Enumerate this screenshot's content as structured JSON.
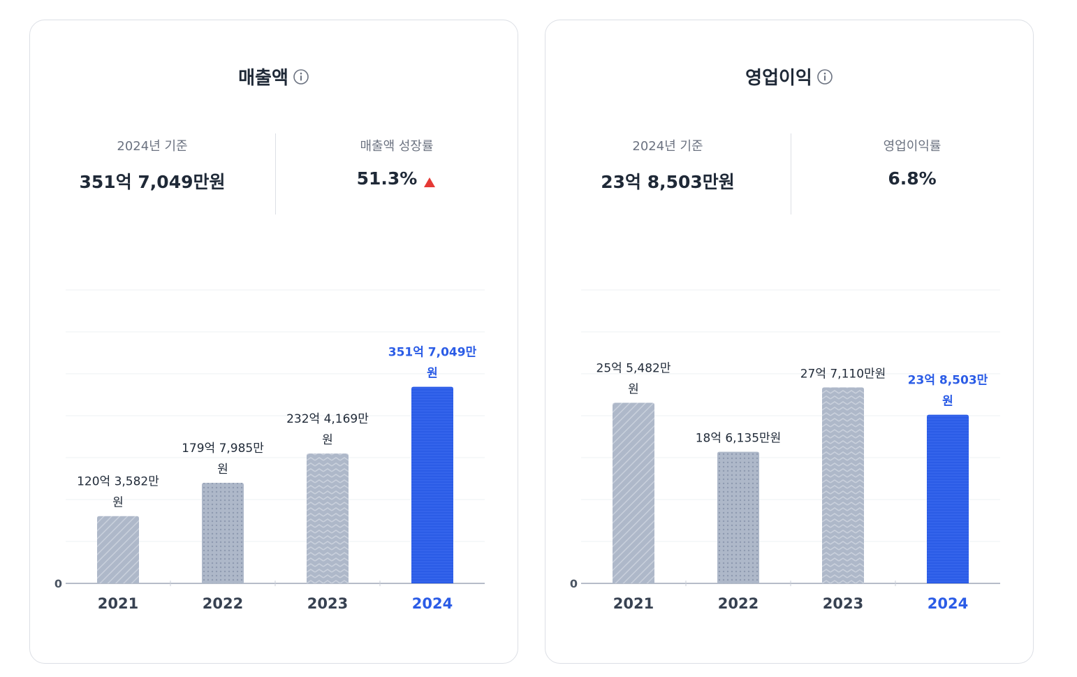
{
  "colors": {
    "highlight": "#2b5ce6",
    "bar_gray": "#aeb8c9",
    "axis": "#8a94a6",
    "grid": "#eef0f3",
    "up_arrow": "#e53935"
  },
  "cards": [
    {
      "title": "매출액",
      "title_icon": "info-circle-icon",
      "stat_left": {
        "label": "2024년 기준",
        "value": "351억 7,049만원"
      },
      "stat_right": {
        "label": "매출액 성장률",
        "value": "51.3%",
        "trend_icon": "triangle-up-icon"
      }
    },
    {
      "title": "영업이익",
      "title_icon": "info-circle-icon",
      "stat_left": {
        "label": "2024년 기준",
        "value": "23억 8,503만원"
      },
      "stat_right": {
        "label": "영업이익률",
        "value": "6.8%"
      }
    }
  ],
  "chart_data": [
    {
      "type": "bar",
      "title": "매출액",
      "categories": [
        "2021",
        "2022",
        "2023",
        "2024"
      ],
      "values": [
        120.3582,
        179.7985,
        232.4169,
        351.7049
      ],
      "unit": "억원",
      "data_labels": [
        [
          "120억 3,582만",
          "원"
        ],
        [
          "179억 7,985만",
          "원"
        ],
        [
          "232억 4,169만",
          "원"
        ],
        [
          "351억 7,049만",
          "원"
        ]
      ],
      "y_tick_labels": [
        "0"
      ],
      "highlight_index": 3,
      "patterns": [
        "diagonal",
        "dots",
        "zigzag",
        "solid-lines"
      ],
      "ylim": [
        0,
        525
      ],
      "grid": true
    },
    {
      "type": "bar",
      "title": "영업이익",
      "categories": [
        "2021",
        "2022",
        "2023",
        "2024"
      ],
      "values": [
        25.5482,
        18.6135,
        27.711,
        23.8503
      ],
      "unit": "억원",
      "data_labels": [
        [
          "25억 5,482만",
          "원"
        ],
        [
          "18억 6,135만원"
        ],
        [
          "27억 7,110만원"
        ],
        [
          "23억 8,503만",
          "원"
        ]
      ],
      "y_tick_labels": [
        "0"
      ],
      "highlight_index": 3,
      "patterns": [
        "diagonal",
        "dots",
        "zigzag",
        "solid-lines"
      ],
      "ylim": [
        0,
        41.5
      ],
      "grid": true
    }
  ]
}
